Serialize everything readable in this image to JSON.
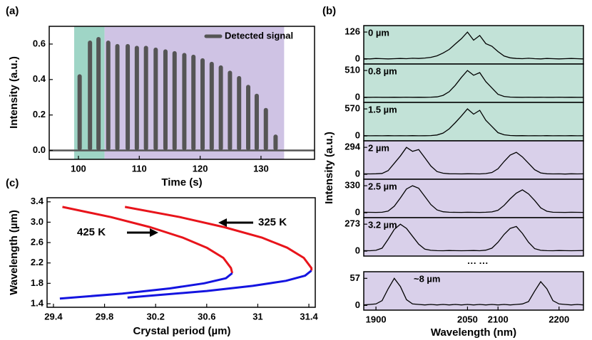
{
  "chart_data": [
    {
      "type": "pulse",
      "panel_label": "(a)",
      "xlabel": "Time (s)",
      "ylabel": "Intensity (a.u.)",
      "x": [
        100.2,
        101.9,
        103.3,
        104.9,
        106.4,
        108.1,
        109.6,
        111.1,
        112.7,
        114.3,
        115.8,
        117.4,
        118.9,
        120.4,
        121.9,
        123.4,
        124.9,
        126.4,
        127.9,
        129.3,
        130.8,
        132.4
      ],
      "series": [
        {
          "name": "Detected signal",
          "color": "#555555",
          "values": [
            0.43,
            0.62,
            0.64,
            0.62,
            0.6,
            0.6,
            0.59,
            0.59,
            0.58,
            0.57,
            0.56,
            0.55,
            0.54,
            0.52,
            0.5,
            0.48,
            0.45,
            0.42,
            0.37,
            0.32,
            0.24,
            0.09
          ]
        }
      ],
      "xlim": [
        95.2,
        138.8
      ],
      "ylim": [
        -0.05,
        0.7
      ],
      "xticks": [
        100,
        110,
        120,
        130
      ],
      "yticks": [
        {
          "value": 0,
          "label": "0.0"
        },
        0.2,
        0.4,
        0.6
      ],
      "regions": [
        {
          "from": 99.3,
          "to": 104.3,
          "color": "#9fd5c6"
        },
        {
          "from": 104.3,
          "to": 133.8,
          "color": "#cfc3e4"
        }
      ],
      "legend": "upper right"
    },
    {
      "type": "spectra",
      "panel_label": "(b)",
      "xlabel": "Wavelength (nm)",
      "ylabel": "Intensity (a.u.)",
      "x": [
        1880,
        1890,
        1900,
        1910,
        1920,
        1930,
        1940,
        1950,
        1960,
        1970,
        1980,
        1990,
        2000,
        2010,
        2020,
        2030,
        2040,
        2050,
        2060,
        2070,
        2080,
        2090,
        2100,
        2110,
        2120,
        2130,
        2140,
        2150,
        2160,
        2170,
        2180,
        2190,
        2200,
        2210,
        2220,
        2230,
        2240
      ],
      "xlim": [
        1880,
        2240
      ],
      "xticks": [
        1900,
        2050,
        2100,
        2200
      ],
      "line_color": "#000000",
      "gap_label": "··· ···",
      "series": [
        {
          "name": "0 µm",
          "color": "#c2e2d7",
          "ylim": [
            -23,
            156
          ],
          "yticks": [
            0,
            126
          ],
          "values": [
            2,
            1,
            3,
            2,
            1,
            2,
            3,
            2,
            4,
            3,
            5,
            8,
            15,
            28,
            45,
            70,
            95,
            126,
            88,
            110,
            72,
            60,
            35,
            14,
            6,
            3,
            2,
            4,
            2,
            1,
            3,
            2,
            1,
            2,
            3,
            2,
            1
          ]
        },
        {
          "name": "0.8 µm",
          "color": "#c2e2d7",
          "ylim": [
            -93,
            632
          ],
          "yticks": [
            0,
            510
          ],
          "values": [
            5,
            3,
            6,
            4,
            3,
            5,
            4,
            6,
            3,
            5,
            4,
            6,
            12,
            40,
            110,
            230,
            380,
            510,
            420,
            470,
            300,
            180,
            60,
            20,
            8,
            5,
            4,
            6,
            3,
            5,
            4,
            3,
            6,
            4,
            5,
            3,
            4
          ]
        },
        {
          "name": "1.5 µm",
          "color": "#c2e2d7",
          "ylim": [
            -103,
            707
          ],
          "yticks": [
            0,
            570
          ],
          "values": [
            6,
            4,
            5,
            3,
            6,
            4,
            5,
            3,
            6,
            4,
            5,
            8,
            20,
            60,
            150,
            280,
            420,
            570,
            460,
            540,
            330,
            200,
            70,
            25,
            9,
            5,
            6,
            4,
            5,
            3,
            6,
            4,
            5,
            3,
            6,
            4,
            5
          ]
        },
        {
          "name": "2 µm",
          "color": "#d9d0ea",
          "ylim": [
            -54,
            365
          ],
          "yticks": [
            0,
            294
          ],
          "values": [
            5,
            4,
            6,
            10,
            40,
            120,
            200,
            294,
            250,
            270,
            180,
            90,
            30,
            12,
            6,
            5,
            4,
            6,
            5,
            4,
            8,
            20,
            60,
            140,
            210,
            240,
            190,
            120,
            50,
            15,
            6,
            4,
            5,
            3,
            6,
            4,
            5
          ]
        },
        {
          "name": "2.5 µm",
          "color": "#d9d0ea",
          "ylim": [
            -60,
            409
          ],
          "yticks": [
            0,
            330
          ],
          "values": [
            6,
            5,
            4,
            6,
            20,
            80,
            180,
            290,
            330,
            300,
            200,
            100,
            35,
            12,
            6,
            5,
            4,
            6,
            5,
            4,
            6,
            10,
            30,
            90,
            170,
            240,
            280,
            230,
            150,
            60,
            18,
            6,
            5,
            4,
            6,
            5,
            4
          ]
        },
        {
          "name": "3.2 µm",
          "color": "#d9d0ea",
          "ylim": [
            -50,
            339
          ],
          "yticks": [
            0,
            273
          ],
          "values": [
            5,
            4,
            8,
            30,
            120,
            220,
            273,
            230,
            150,
            70,
            20,
            8,
            5,
            4,
            6,
            5,
            4,
            5,
            6,
            4,
            10,
            30,
            90,
            170,
            230,
            250,
            180,
            90,
            25,
            8,
            5,
            4,
            6,
            5,
            4,
            5,
            6
          ]
        },
        {
          "name": "~8 µm",
          "color": "#d9d0ea",
          "ylim": [
            -10,
            71
          ],
          "yticks": [
            0,
            57
          ],
          "values": [
            1,
            2,
            3,
            10,
            35,
            57,
            40,
            12,
            3,
            2,
            1,
            2,
            1,
            2,
            1,
            2,
            1,
            2,
            1,
            2,
            1,
            2,
            1,
            2,
            1,
            2,
            3,
            8,
            30,
            50,
            35,
            10,
            3,
            2,
            1,
            2,
            1
          ]
        }
      ]
    },
    {
      "type": "line",
      "panel_label": "(c)",
      "xlabel": "Crystal period (µm)",
      "ylabel": "Wavelength (µm)",
      "xlim": [
        29.35,
        31.45
      ],
      "ylim": [
        1.33,
        3.48
      ],
      "xticks": [
        29.4,
        29.8,
        30.2,
        30.6,
        31,
        31.4
      ],
      "yticks": [
        1.4,
        1.8,
        2.2,
        2.6,
        {
          "value": 3,
          "label": "3.0"
        },
        3.4
      ],
      "series": [
        {
          "color": "#e8141b",
          "x": [
            29.47,
            29.85,
            30.16,
            30.41,
            30.6,
            30.73,
            30.79,
            30.8
          ],
          "values": [
            3.3,
            3.1,
            2.9,
            2.7,
            2.5,
            2.3,
            2.1,
            2.0
          ]
        },
        {
          "color": "#1414e0",
          "x": [
            30.8,
            30.75,
            30.58,
            30.31,
            29.94,
            29.45
          ],
          "values": [
            2.0,
            1.9,
            1.8,
            1.7,
            1.6,
            1.5
          ]
        },
        {
          "color": "#e8141b",
          "x": [
            29.96,
            30.39,
            30.74,
            31.03,
            31.23,
            31.36,
            31.42,
            31.42
          ],
          "values": [
            3.3,
            3.1,
            2.9,
            2.7,
            2.5,
            2.3,
            2.1,
            2.05
          ]
        },
        {
          "color": "#1414e0",
          "x": [
            31.42,
            31.37,
            31.22,
            30.96,
            30.6,
            29.98
          ],
          "values": [
            2.05,
            1.95,
            1.85,
            1.75,
            1.65,
            1.52
          ]
        }
      ],
      "annotations": [
        "425 K",
        "325 K"
      ]
    }
  ]
}
